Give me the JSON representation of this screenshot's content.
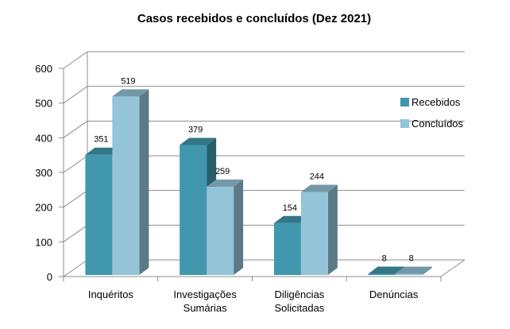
{
  "chart_data": {
    "type": "bar",
    "title": "Casos recebidos e concluídos (Dez 2021)",
    "categories": [
      [
        "Inquéritos"
      ],
      [
        "Investigações",
        "Sumárias"
      ],
      [
        "Diligências",
        "Solicitadas"
      ],
      [
        "Denúncias"
      ]
    ],
    "series": [
      {
        "name": "Recebidos",
        "values": [
          351,
          379,
          154,
          8
        ],
        "color": "#4197AE"
      },
      {
        "name": "Concluídos",
        "values": [
          519,
          259,
          244,
          8
        ],
        "color": "#93C4D7"
      }
    ],
    "ylim": [
      0,
      600
    ],
    "yticks": [
      0,
      100,
      200,
      300,
      400,
      500,
      600
    ],
    "grid": true,
    "legend": "right",
    "style": "3d-clustered-column"
  }
}
